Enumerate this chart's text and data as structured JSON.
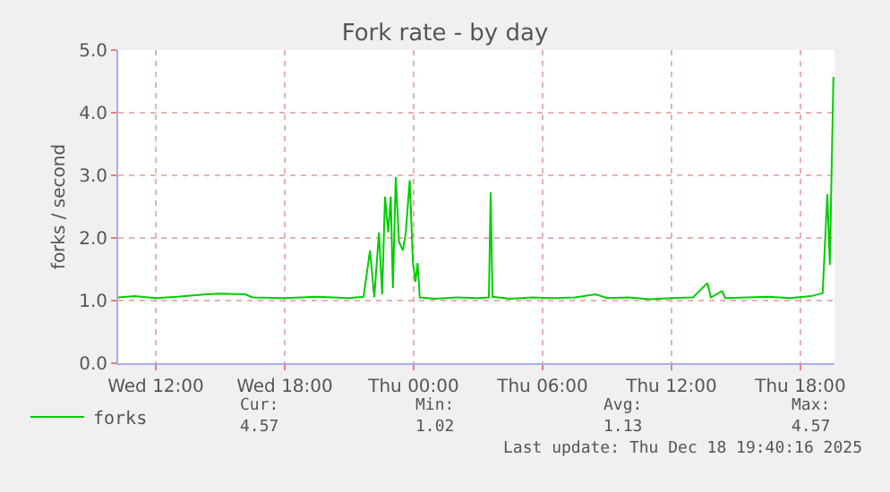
{
  "chart_data": {
    "type": "line",
    "title": "Fork rate - by day",
    "ylabel": "forks / second",
    "x": [
      "2025-12-17T10:15",
      "2025-12-17T11:00",
      "2025-12-17T12:00",
      "2025-12-17T13:00",
      "2025-12-17T14:20",
      "2025-12-17T15:00",
      "2025-12-17T16:10",
      "2025-12-17T16:30",
      "2025-12-17T18:00",
      "2025-12-17T19:30",
      "2025-12-17T21:00",
      "2025-12-17T21:40",
      "2025-12-17T21:58",
      "2025-12-17T22:10",
      "2025-12-17T22:23",
      "2025-12-17T22:32",
      "2025-12-17T22:40",
      "2025-12-17T22:49",
      "2025-12-17T22:56",
      "2025-12-17T23:02",
      "2025-12-17T23:10",
      "2025-12-17T23:19",
      "2025-12-17T23:30",
      "2025-12-17T23:38",
      "2025-12-17T23:49",
      "2025-12-17T23:58",
      "2025-12-18T00:05",
      "2025-12-18T00:11",
      "2025-12-18T00:17",
      "2025-12-18T01:00",
      "2025-12-18T02:00",
      "2025-12-18T03:00",
      "2025-12-18T03:30",
      "2025-12-18T03:35",
      "2025-12-18T03:40",
      "2025-12-18T04:30",
      "2025-12-18T05:30",
      "2025-12-18T06:30",
      "2025-12-18T07:30",
      "2025-12-18T08:28",
      "2025-12-18T09:00",
      "2025-12-18T10:00",
      "2025-12-18T11:00",
      "2025-12-18T12:00",
      "2025-12-18T13:00",
      "2025-12-18T13:40",
      "2025-12-18T13:50",
      "2025-12-18T14:21",
      "2025-12-18T14:30",
      "2025-12-18T15:30",
      "2025-12-18T16:30",
      "2025-12-18T17:30",
      "2025-12-18T18:30",
      "2025-12-18T19:02",
      "2025-12-18T19:15",
      "2025-12-18T19:22",
      "2025-12-18T19:32"
    ],
    "series": [
      {
        "name": "forks",
        "color": "#00cc00",
        "values": [
          1.05,
          1.07,
          1.04,
          1.06,
          1.1,
          1.11,
          1.1,
          1.05,
          1.04,
          1.06,
          1.04,
          1.06,
          1.8,
          1.05,
          2.09,
          1.1,
          2.66,
          2.09,
          2.66,
          1.2,
          2.97,
          1.94,
          1.8,
          2.09,
          2.92,
          1.6,
          1.3,
          1.6,
          1.05,
          1.03,
          1.05,
          1.04,
          1.05,
          2.73,
          1.06,
          1.03,
          1.05,
          1.04,
          1.05,
          1.1,
          1.04,
          1.05,
          1.02,
          1.04,
          1.05,
          1.28,
          1.05,
          1.15,
          1.04,
          1.05,
          1.06,
          1.04,
          1.07,
          1.12,
          2.7,
          1.57,
          4.57
        ]
      }
    ],
    "xlim": [
      "2025-12-17T10:15",
      "2025-12-18T19:35"
    ],
    "xticks": [
      {
        "value": "2025-12-17T12:00",
        "label": "Wed 12:00"
      },
      {
        "value": "2025-12-17T18:00",
        "label": "Wed 18:00"
      },
      {
        "value": "2025-12-18T00:00",
        "label": "Thu 00:00"
      },
      {
        "value": "2025-12-18T06:00",
        "label": "Thu 06:00"
      },
      {
        "value": "2025-12-18T12:00",
        "label": "Thu 12:00"
      },
      {
        "value": "2025-12-18T18:00",
        "label": "Thu 18:00"
      }
    ],
    "ylim": [
      0,
      5
    ],
    "yticks": [
      {
        "value": 0,
        "label": "0.0"
      },
      {
        "value": 1,
        "label": "1.0"
      },
      {
        "value": 2,
        "label": "2.0"
      },
      {
        "value": 3,
        "label": "3.0"
      },
      {
        "value": 4,
        "label": "4.0"
      },
      {
        "value": 5,
        "label": "5.0"
      }
    ],
    "grid": true,
    "legend": "bottom left",
    "marker": "none",
    "line_style": "solid",
    "annotations": [
      "Cur:",
      "Min:",
      "Avg:",
      "Max:",
      "4.57",
      "1.02",
      "1.13",
      "4.57",
      "Last update: Thu Dec 18 19:40:16 2025"
    ]
  }
}
